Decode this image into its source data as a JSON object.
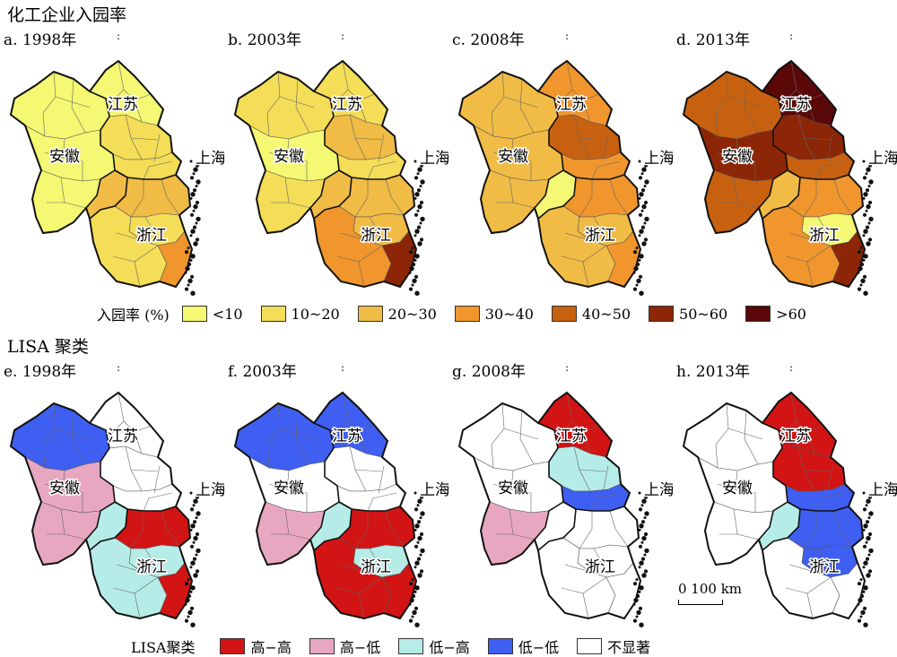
{
  "titles": {
    "top": "化工企业入园率",
    "bottom": "LISA 聚类"
  },
  "region_labels": {
    "jiangsu": "江苏",
    "anhui": "安徽",
    "shanghai": "上海",
    "zhejiang": "浙江"
  },
  "panels": [
    {
      "id": "a",
      "label": "a. 1998年",
      "kind": "rate",
      "fills": {
        "anhui_n": "<10",
        "anhui_c": "<10",
        "anhui_s": "<10",
        "jiangsu_n": "<10",
        "jiangsu_m": "10~20",
        "jiangsu_s": "10~20",
        "zhejiang_n": "20~30",
        "zhejiang_c": "10~20",
        "zhejiang_s": "10~20",
        "zhejiang_se": "30~40",
        "anhui_hs": "20~30"
      }
    },
    {
      "id": "b",
      "label": "b. 2003年",
      "kind": "rate",
      "fills": {
        "anhui_n": "10~20",
        "anhui_c": "<10",
        "anhui_s": "10~20",
        "jiangsu_n": "10~20",
        "jiangsu_m": "20~30",
        "jiangsu_s": "10~20",
        "zhejiang_n": "20~30",
        "zhejiang_c": "20~30",
        "zhejiang_s": "30~40",
        "zhejiang_se": "50~60",
        "anhui_hs": "20~30"
      }
    },
    {
      "id": "c",
      "label": "c. 2008年",
      "kind": "rate",
      "fills": {
        "anhui_n": "20~30",
        "anhui_c": "20~30",
        "anhui_s": "20~30",
        "jiangsu_n": "30~40",
        "jiangsu_m": "40~50",
        "jiangsu_s": "30~40",
        "zhejiang_n": "30~40",
        "zhejiang_c": "20~30",
        "zhejiang_s": "20~30",
        "zhejiang_se": "30~40",
        "anhui_hs": "<10"
      }
    },
    {
      "id": "d",
      "label": "d. 2013年",
      "kind": "rate",
      "fills": {
        "anhui_n": "40~50",
        "anhui_c": "50~60",
        "anhui_s": "40~50",
        "jiangsu_n": ">60",
        "jiangsu_m": "50~60",
        "jiangsu_s": "40~50",
        "zhejiang_n": "30~40",
        "zhejiang_c": "<10",
        "zhejiang_s": "30~40",
        "zhejiang_se": "50~60",
        "anhui_hs": "20~30"
      }
    },
    {
      "id": "e",
      "label": "e. 1998年",
      "kind": "lisa",
      "fills": {
        "anhui_n": "低−低",
        "anhui_c": "高−低",
        "anhui_s": "高−低",
        "jiangsu_n": "不显著",
        "jiangsu_m": "不显著",
        "jiangsu_s": "不显著",
        "zhejiang_n": "高−高",
        "zhejiang_c": "低−高",
        "zhejiang_s": "低−高",
        "zhejiang_se": "高−高",
        "anhui_hs": "低−高"
      }
    },
    {
      "id": "f",
      "label": "f. 2003年",
      "kind": "lisa",
      "fills": {
        "anhui_n": "低−低",
        "anhui_c": "不显著",
        "anhui_s": "高−低",
        "jiangsu_n": "低−低",
        "jiangsu_m": "不显著",
        "jiangsu_s": "不显著",
        "zhejiang_n": "高−高",
        "zhejiang_c": "低−高",
        "zhejiang_s": "高−高",
        "zhejiang_se": "高−高",
        "anhui_hs": "低−高"
      }
    },
    {
      "id": "g",
      "label": "g. 2008年",
      "kind": "lisa",
      "fills": {
        "anhui_n": "不显著",
        "anhui_c": "不显著",
        "anhui_s": "高−低",
        "jiangsu_n": "高−高",
        "jiangsu_m": "低−高",
        "jiangsu_s": "低−低",
        "zhejiang_n": "不显著",
        "zhejiang_c": "不显著",
        "zhejiang_s": "不显著",
        "zhejiang_se": "不显著",
        "anhui_hs": "不显著"
      }
    },
    {
      "id": "h",
      "label": "h. 2013年",
      "kind": "lisa",
      "fills": {
        "anhui_n": "不显著",
        "anhui_c": "不显著",
        "anhui_s": "不显著",
        "jiangsu_n": "高−高",
        "jiangsu_m": "高−高",
        "jiangsu_s": "低−低",
        "zhejiang_n": "低−低",
        "zhejiang_c": "低−低",
        "zhejiang_s": "不显著",
        "zhejiang_se": "不显著",
        "anhui_hs": "低−高"
      }
    }
  ],
  "legend_rate": {
    "title": "入园率 (%)",
    "items": [
      {
        "label": "<10",
        "color": "#f4f872"
      },
      {
        "label": "10~20",
        "color": "#f4dd57"
      },
      {
        "label": "20~30",
        "color": "#f1bc45"
      },
      {
        "label": "30~40",
        "color": "#f0962d"
      },
      {
        "label": "40~50",
        "color": "#c8610f"
      },
      {
        "label": "50~60",
        "color": "#8c2606"
      },
      {
        "label": ">60",
        "color": "#5a0808"
      }
    ]
  },
  "legend_lisa": {
    "title": "LISA聚类",
    "items": [
      {
        "label": "高−高",
        "color": "#d31414"
      },
      {
        "label": "高−低",
        "color": "#e8a7c0"
      },
      {
        "label": "低−高",
        "color": "#b5ece8"
      },
      {
        "label": "低−低",
        "color": "#3f5ef2"
      },
      {
        "label": "不显著",
        "color": "#ffffff"
      }
    ]
  },
  "scale_bar": {
    "label": "0 100 km"
  }
}
